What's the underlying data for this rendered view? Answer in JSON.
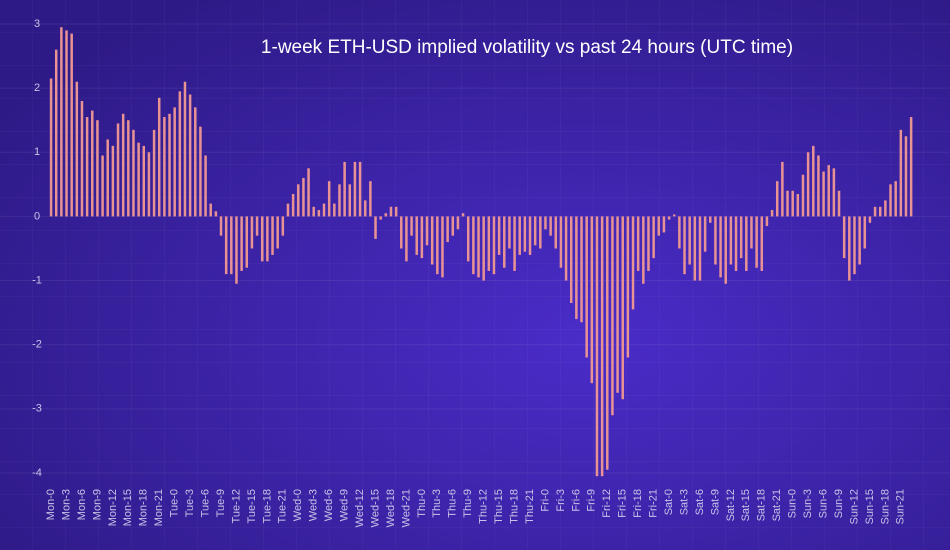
{
  "chart_data": {
    "type": "bar",
    "title": "1-week ETH-USD implied volatility vs past 24 hours (UTC time)",
    "color": "#e99294",
    "grid": true,
    "ylim": [
      -4.2,
      3.1
    ],
    "yticks": [
      -4,
      -3,
      -2,
      -1,
      0,
      1,
      2,
      3
    ],
    "categories": [
      "Mon-0",
      null,
      null,
      "Mon-3",
      null,
      null,
      "Mon-6",
      null,
      null,
      "Mon-9",
      null,
      null,
      "Mon-12",
      null,
      null,
      "Mon-15",
      null,
      null,
      "Mon-18",
      null,
      null,
      "Mon-21",
      null,
      null,
      "Tue-0",
      null,
      null,
      "Tue-3",
      null,
      null,
      "Tue-6",
      null,
      null,
      "Tue-9",
      null,
      null,
      "Tue-12",
      null,
      null,
      "Tue-15",
      null,
      null,
      "Tue-18",
      null,
      null,
      "Tue-21",
      null,
      null,
      "Wed-0",
      null,
      null,
      "Wed-3",
      null,
      null,
      "Wed-6",
      null,
      null,
      "Wed-9",
      null,
      null,
      "Wed-12",
      null,
      null,
      "Wed-15",
      null,
      null,
      "Wed-18",
      null,
      null,
      "Wed-21",
      null,
      null,
      "Thu-0",
      null,
      null,
      "Thu-3",
      null,
      null,
      "Thu-6",
      null,
      null,
      "Thu-9",
      null,
      null,
      "Thu-12",
      null,
      null,
      "Thu-15",
      null,
      null,
      "Thu-18",
      null,
      null,
      "Thu-21",
      null,
      null,
      "Fri-0",
      null,
      null,
      "Fri-3",
      null,
      null,
      "Fri-6",
      null,
      null,
      "Fri-9",
      null,
      null,
      "Fri-12",
      null,
      null,
      "Fri-15",
      null,
      null,
      "Fri-18",
      null,
      null,
      "Fri-21",
      null,
      null,
      "Sat-0",
      null,
      null,
      "Sat-3",
      null,
      null,
      "Sat-6",
      null,
      null,
      "Sat-9",
      null,
      null,
      "Sat-12",
      null,
      null,
      "Sat-15",
      null,
      null,
      "Sat-18",
      null,
      null,
      "Sat-21",
      null,
      null,
      "Sun-0",
      null,
      null,
      "Sun-3",
      null,
      null,
      "Sun-6",
      null,
      null,
      "Sun-9",
      null,
      null,
      "Sun-12",
      null,
      null,
      "Sun-15",
      null,
      null,
      "Sun-18",
      null,
      null,
      "Sun-21",
      null,
      null
    ],
    "values": [
      2.15,
      2.6,
      2.95,
      2.9,
      2.85,
      2.1,
      1.8,
      1.55,
      1.65,
      1.5,
      0.95,
      1.2,
      1.1,
      1.45,
      1.6,
      1.5,
      1.35,
      1.15,
      1.1,
      1.0,
      1.35,
      1.85,
      1.55,
      1.6,
      1.7,
      1.95,
      2.1,
      1.9,
      1.7,
      1.4,
      0.95,
      0.2,
      0.08,
      -0.3,
      -0.9,
      -0.9,
      -1.05,
      -0.85,
      -0.8,
      -0.5,
      -0.3,
      -0.7,
      -0.7,
      -0.6,
      -0.5,
      -0.3,
      0.2,
      0.35,
      0.5,
      0.6,
      0.75,
      0.15,
      0.1,
      0.2,
      0.55,
      0.2,
      0.5,
      0.85,
      0.5,
      0.85,
      0.85,
      0.25,
      0.55,
      -0.35,
      -0.05,
      0.05,
      0.15,
      0.15,
      -0.5,
      -0.7,
      -0.3,
      -0.6,
      -0.65,
      -0.45,
      -0.75,
      -0.9,
      -0.95,
      -0.4,
      -0.3,
      -0.2,
      0.05,
      -0.7,
      -0.9,
      -0.95,
      -1.0,
      -0.85,
      -0.9,
      -0.6,
      -0.8,
      -0.5,
      -0.85,
      -0.6,
      -0.55,
      -0.6,
      -0.45,
      -0.5,
      -0.2,
      -0.3,
      -0.5,
      -0.8,
      -1.0,
      -1.35,
      -1.6,
      -1.65,
      -2.2,
      -2.6,
      -4.05,
      -4.05,
      -3.95,
      -3.1,
      -2.75,
      -2.85,
      -2.2,
      -1.45,
      -0.85,
      -1.05,
      -0.85,
      -0.65,
      -0.3,
      -0.25,
      -0.05,
      0.03,
      -0.5,
      -0.9,
      -0.75,
      -1.0,
      -1.0,
      -0.55,
      -0.1,
      -0.75,
      -0.95,
      -1.05,
      -0.75,
      -0.85,
      -0.65,
      -0.85,
      -0.5,
      -0.8,
      -0.85,
      -0.15,
      0.1,
      0.55,
      0.85,
      0.4,
      0.4,
      0.35,
      0.65,
      1.0,
      1.1,
      0.95,
      0.7,
      0.8,
      0.75,
      0.4,
      -0.65,
      -1.0,
      -0.9,
      -0.75,
      -0.5,
      -0.1,
      0.15,
      0.15,
      0.25,
      0.5,
      0.55,
      1.35,
      1.25,
      1.55
    ]
  }
}
